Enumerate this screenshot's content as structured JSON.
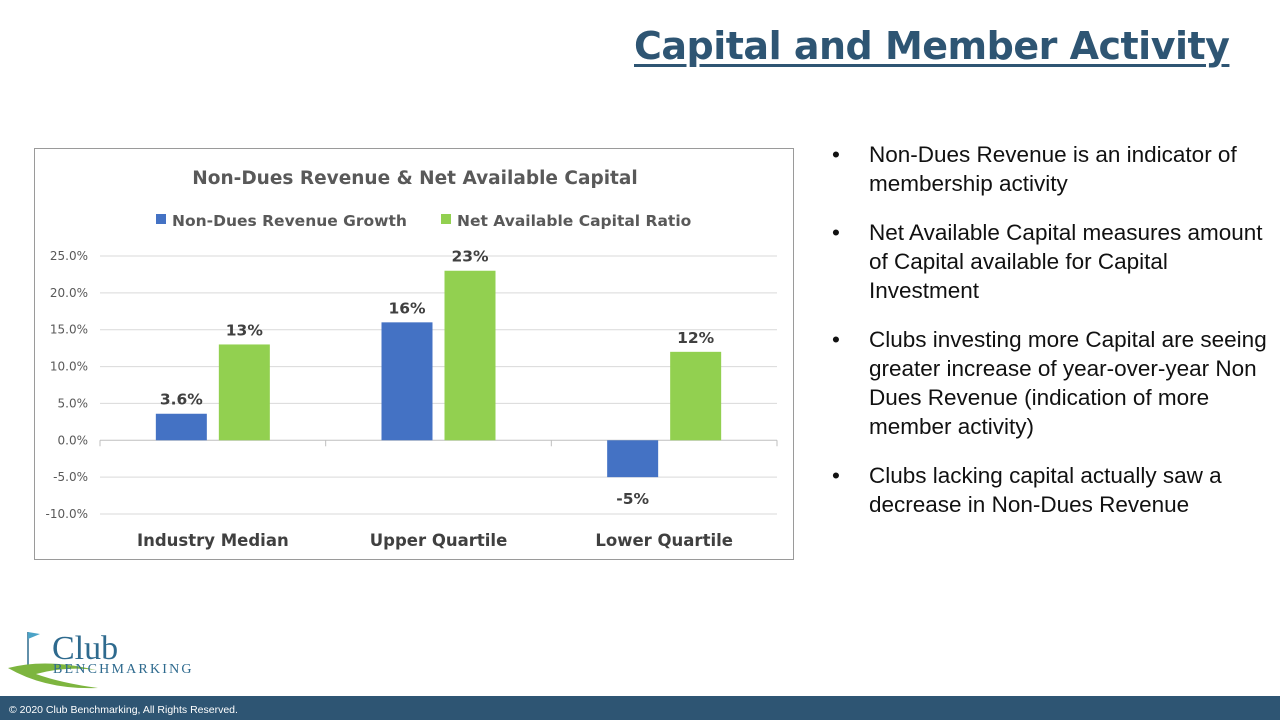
{
  "page": {
    "title": "Capital and Member Activity",
    "footer": "© 2020 Club Benchmarking, All Rights Reserved."
  },
  "bullets": [
    "Non-Dues Revenue is an indicator of membership activity",
    "Net Available Capital measures amount of Capital available for Capital Investment",
    "Clubs investing more Capital are seeing greater increase of year-over-year Non Dues Revenue (indication of more member activity)",
    "Clubs lacking capital actually saw a decrease in Non-Dues Revenue"
  ],
  "logo": {
    "line1": "Club",
    "line2": "BENCHMARKING",
    "icon": "golf-flag-icon",
    "colors": {
      "text": "#2E6A8E",
      "swoosh": "#7DB53F"
    }
  },
  "chart_data": {
    "type": "bar",
    "title": "Non-Dues Revenue & Net Available Capital",
    "categories": [
      "Industry Median",
      "Upper Quartile",
      "Lower Quartile"
    ],
    "series": [
      {
        "name": "Non-Dues Revenue Growth",
        "color": "#4472C4",
        "values": [
          3.6,
          16,
          -5
        ],
        "labels": [
          "3.6%",
          "16%",
          "-5%"
        ]
      },
      {
        "name": "Net Available Capital Ratio",
        "color": "#92D050",
        "values": [
          13,
          23,
          12
        ],
        "labels": [
          "13%",
          "23%",
          "12%"
        ]
      }
    ],
    "ylim": [
      -10,
      25
    ],
    "yticks": [
      25,
      20,
      15,
      10,
      5,
      0,
      -5,
      -10
    ],
    "ytick_labels": [
      "25.0%",
      "20.0%",
      "15.0%",
      "10.0%",
      "5.0%",
      "0.0%",
      "-5.0%",
      "-10.0%"
    ],
    "legend": "top",
    "grid": true
  }
}
